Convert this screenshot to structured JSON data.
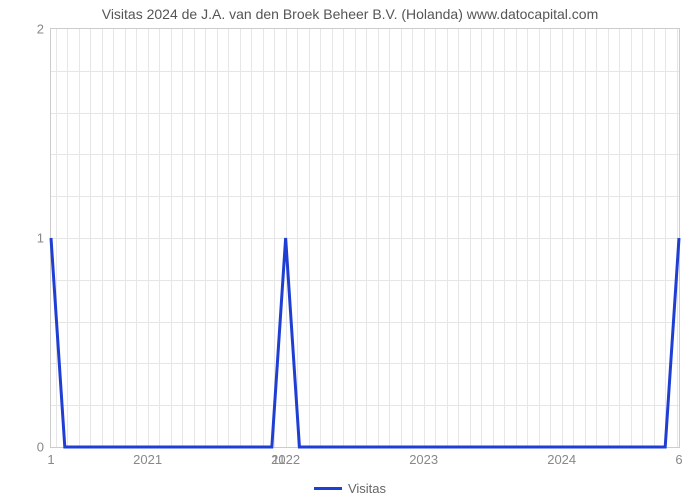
{
  "chart": {
    "type": "line",
    "title": "Visitas 2024 de J.A. van den Broek Beheer B.V. (Holanda) www.datocapital.com",
    "title_fontsize": 14,
    "title_color": "#555555",
    "background_color": "#ffffff",
    "plot_border_color": "#cccccc",
    "grid_color": "#e6e6e6",
    "axis_label_color": "#888888",
    "axis_label_fontsize": 13,
    "x": {
      "min": 2020.3,
      "max": 2024.85,
      "ticks": [
        2021,
        2022,
        2023,
        2024
      ],
      "minor_tick_count": 11
    },
    "y": {
      "min": 0,
      "max": 2,
      "ticks": [
        0,
        1,
        2
      ],
      "minor_tick_count": 9
    },
    "extra_x_labels": [
      {
        "x": 2020.3,
        "text": "1"
      },
      {
        "x": 2021.95,
        "text": "11"
      },
      {
        "x": 2024.85,
        "text": "6"
      }
    ],
    "series": {
      "label": "Visitas",
      "color": "#1f3fd4",
      "line_width": 3,
      "points": [
        {
          "x": 2020.3,
          "y": 1.0
        },
        {
          "x": 2020.4,
          "y": 0.0
        },
        {
          "x": 2021.9,
          "y": 0.0
        },
        {
          "x": 2022.0,
          "y": 1.0
        },
        {
          "x": 2022.1,
          "y": 0.0
        },
        {
          "x": 2024.75,
          "y": 0.0
        },
        {
          "x": 2024.85,
          "y": 1.0
        }
      ]
    },
    "legend": {
      "position": "bottom-center",
      "swatch_width": 28
    }
  }
}
